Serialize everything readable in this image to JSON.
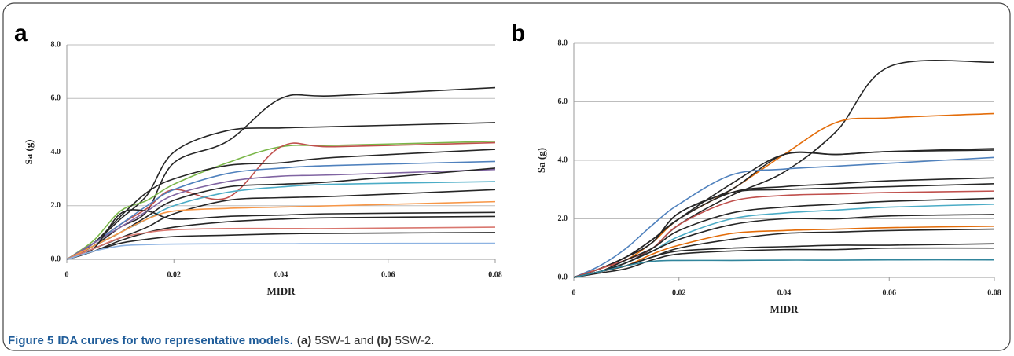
{
  "chart_data": [
    {
      "type": "line",
      "panel_label": "a",
      "xlabel": "MIDR",
      "ylabel": "Sa (g)",
      "x": [
        0,
        0.005,
        0.01,
        0.015,
        0.02,
        0.03,
        0.04,
        0.05,
        0.08
      ],
      "xlim": [
        0,
        0.08
      ],
      "ylim": [
        0,
        8
      ],
      "xticks": [
        0,
        0.02,
        0.04,
        0.06,
        0.08
      ],
      "yticks": [
        {
          "value": 0,
          "label": "0.0"
        },
        {
          "value": 2,
          "label": "2.0"
        },
        {
          "value": 4,
          "label": "4.0"
        },
        {
          "value": 6,
          "label": "6.0"
        },
        {
          "value": 8,
          "label": "8.0"
        }
      ],
      "grid": true,
      "series": [
        {
          "color": "#262626",
          "values": [
            0,
            0.5,
            1.2,
            1.8,
            3.6,
            4.4,
            6.0,
            6.1,
            6.4
          ]
        },
        {
          "color": "#262626",
          "values": [
            0,
            0.6,
            1.5,
            2.4,
            4.0,
            4.8,
            4.9,
            4.95,
            5.1
          ]
        },
        {
          "color": "#7ab648",
          "values": [
            0,
            0.7,
            1.8,
            2.2,
            2.8,
            3.6,
            4.2,
            4.25,
            4.4
          ]
        },
        {
          "color": "#c0504d",
          "values": [
            0,
            0.6,
            1.3,
            1.9,
            2.6,
            2.3,
            4.2,
            4.2,
            4.35
          ]
        },
        {
          "color": "#262626",
          "values": [
            0,
            0.6,
            1.6,
            2.5,
            3.0,
            3.5,
            3.6,
            3.8,
            4.1
          ]
        },
        {
          "color": "#4f81bd",
          "values": [
            0,
            0.6,
            1.3,
            2.0,
            2.6,
            3.2,
            3.4,
            3.5,
            3.65
          ]
        },
        {
          "color": "#8064a2",
          "values": [
            0,
            0.6,
            1.2,
            1.8,
            2.4,
            2.9,
            3.1,
            3.15,
            3.35
          ]
        },
        {
          "color": "#262626",
          "values": [
            0,
            0.5,
            1.0,
            1.6,
            2.2,
            2.7,
            2.8,
            2.9,
            3.4
          ]
        },
        {
          "color": "#4bacc6",
          "values": [
            0,
            0.5,
            1.0,
            1.5,
            2.0,
            2.5,
            2.7,
            2.8,
            2.9
          ]
        },
        {
          "color": "#262626",
          "values": [
            0,
            0.4,
            0.8,
            1.2,
            1.7,
            2.2,
            2.3,
            2.35,
            2.6
          ]
        },
        {
          "color": "#f79646",
          "values": [
            0,
            0.5,
            1.0,
            1.5,
            1.8,
            1.9,
            1.95,
            2.0,
            2.15
          ]
        },
        {
          "color": "#262626",
          "values": [
            0,
            0.4,
            1.7,
            1.8,
            1.5,
            1.6,
            1.65,
            1.7,
            1.75
          ]
        },
        {
          "color": "#262626",
          "values": [
            0,
            0.3,
            0.7,
            1.0,
            1.2,
            1.4,
            1.5,
            1.55,
            1.6
          ]
        },
        {
          "color": "#d9776f",
          "values": [
            0,
            0.4,
            0.8,
            1.0,
            1.1,
            1.15,
            1.15,
            1.15,
            1.2
          ]
        },
        {
          "color": "#262626",
          "values": [
            0,
            0.3,
            0.6,
            0.75,
            0.85,
            0.9,
            0.95,
            0.97,
            1.0
          ]
        },
        {
          "color": "#8db3e2",
          "values": [
            0,
            0.3,
            0.5,
            0.55,
            0.57,
            0.58,
            0.58,
            0.59,
            0.6
          ]
        }
      ]
    },
    {
      "type": "line",
      "panel_label": "b",
      "xlabel": "MIDR",
      "ylabel": "Sa (g)",
      "x": [
        0,
        0.005,
        0.01,
        0.015,
        0.02,
        0.03,
        0.04,
        0.05,
        0.06,
        0.08
      ],
      "xlim": [
        0,
        0.08
      ],
      "ylim": [
        0,
        8
      ],
      "xticks": [
        0,
        0.02,
        0.04,
        0.06,
        0.08
      ],
      "yticks": [
        {
          "value": 0,
          "label": "0.0"
        },
        {
          "value": 2,
          "label": "2.0"
        },
        {
          "value": 4,
          "label": "4.0"
        },
        {
          "value": 6,
          "label": "6.0"
        },
        {
          "value": 8,
          "label": "8.0"
        }
      ],
      "grid": true,
      "series": [
        {
          "color": "#262626",
          "values": [
            0,
            0.2,
            0.5,
            1.0,
            1.8,
            2.8,
            3.6,
            5.0,
            7.2,
            7.35
          ]
        },
        {
          "color": "#e36c09",
          "values": [
            0,
            0.3,
            0.6,
            1.2,
            2.0,
            3.0,
            4.2,
            5.3,
            5.45,
            5.6
          ]
        },
        {
          "color": "#262626",
          "values": [
            0,
            0.3,
            0.7,
            1.3,
            2.0,
            3.2,
            4.2,
            4.2,
            4.3,
            4.4
          ]
        },
        {
          "color": "#262626",
          "values": [
            0,
            0.3,
            0.7,
            1.2,
            2.2,
            3.0,
            4.2,
            4.2,
            4.3,
            4.35
          ]
        },
        {
          "color": "#4f81bd",
          "values": [
            0,
            0.4,
            1.0,
            1.8,
            2.5,
            3.5,
            3.7,
            3.8,
            3.9,
            4.1
          ]
        },
        {
          "color": "#262626",
          "values": [
            0,
            0.3,
            0.7,
            1.3,
            2.0,
            2.9,
            3.1,
            3.2,
            3.3,
            3.4
          ]
        },
        {
          "color": "#262626",
          "values": [
            0,
            0.3,
            0.7,
            1.2,
            2.2,
            2.9,
            3.0,
            3.05,
            3.1,
            3.2
          ]
        },
        {
          "color": "#c0504d",
          "values": [
            0,
            0.3,
            0.6,
            1.0,
            1.8,
            2.6,
            2.8,
            2.85,
            2.9,
            2.95
          ]
        },
        {
          "color": "#262626",
          "values": [
            0,
            0.2,
            0.6,
            1.0,
            1.6,
            2.2,
            2.4,
            2.5,
            2.6,
            2.7
          ]
        },
        {
          "color": "#4bacc6",
          "values": [
            0,
            0.2,
            0.5,
            0.9,
            1.4,
            2.0,
            2.2,
            2.3,
            2.4,
            2.5
          ]
        },
        {
          "color": "#262626",
          "values": [
            0,
            0.2,
            0.5,
            0.9,
            1.3,
            1.8,
            2.0,
            2.0,
            2.1,
            2.15
          ]
        },
        {
          "color": "#e36c09",
          "values": [
            0,
            0.2,
            0.4,
            0.8,
            1.1,
            1.5,
            1.6,
            1.65,
            1.7,
            1.75
          ]
        },
        {
          "color": "#262626",
          "values": [
            0,
            0.2,
            0.4,
            0.7,
            1.0,
            1.3,
            1.5,
            1.55,
            1.6,
            1.65
          ]
        },
        {
          "color": "#262626",
          "values": [
            0,
            0.2,
            0.4,
            0.7,
            0.9,
            1.0,
            1.05,
            1.1,
            1.1,
            1.15
          ]
        },
        {
          "color": "#262626",
          "values": [
            0,
            0.15,
            0.3,
            0.6,
            0.8,
            0.9,
            0.95,
            0.95,
            1.0,
            1.0
          ]
        },
        {
          "color": "#31859c",
          "values": [
            0,
            0.2,
            0.4,
            0.55,
            0.58,
            0.58,
            0.59,
            0.59,
            0.6,
            0.6
          ]
        }
      ]
    }
  ],
  "caption": {
    "label": "Figure 5",
    "title": "IDA curves for two representative models.",
    "parts": [
      {
        "text": "(a)",
        "bold": true
      },
      {
        "text": " 5SW-1 and "
      },
      {
        "text": "(b)",
        "bold": true
      },
      {
        "text": " 5SW-2."
      }
    ]
  }
}
